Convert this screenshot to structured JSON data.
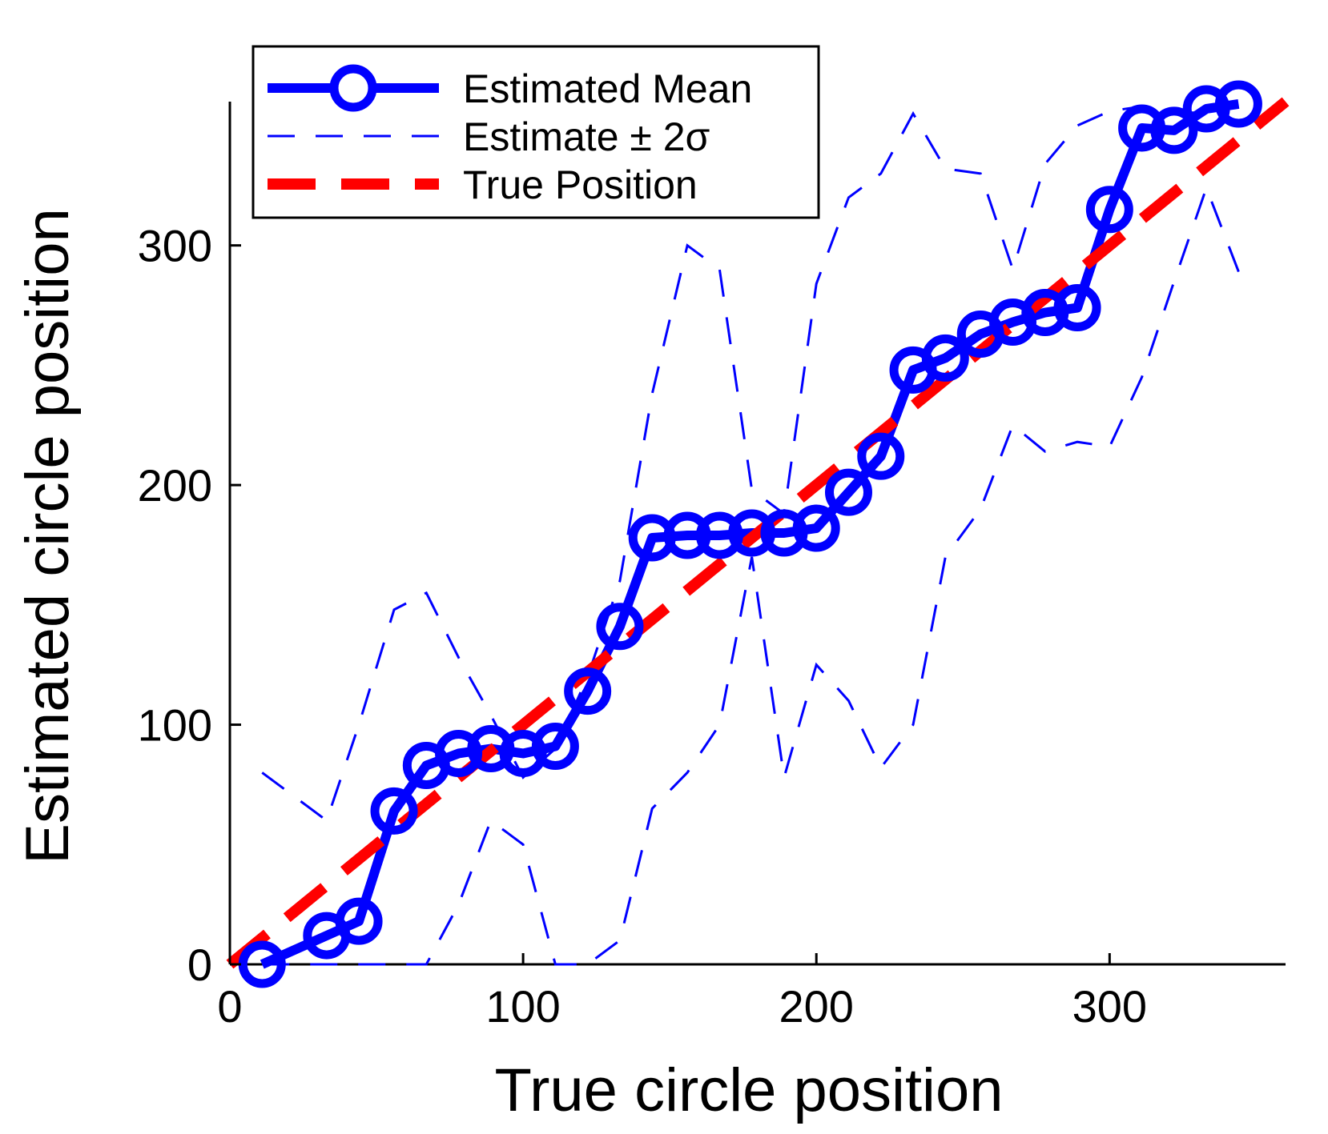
{
  "chart_data": {
    "type": "line",
    "title": "",
    "xlabel": "True circle position",
    "ylabel": "Estimated circle position",
    "xlim": [
      0,
      360
    ],
    "ylim": [
      0,
      360
    ],
    "xticks": [
      0,
      100,
      200,
      300
    ],
    "yticks": [
      0,
      100,
      200,
      300
    ],
    "x_tick_labels": [
      "0",
      "100",
      "200",
      "300"
    ],
    "y_tick_labels": [
      "0",
      "100",
      "200",
      "300"
    ],
    "grid": false,
    "legend_position": "top-left",
    "x": [
      11,
      33,
      44,
      56,
      67,
      78,
      89,
      100,
      111,
      122,
      133,
      144,
      156,
      167,
      178,
      189,
      200,
      211,
      222,
      233,
      244,
      256,
      267,
      278,
      289,
      300,
      311,
      322,
      333,
      344
    ],
    "series": [
      {
        "name": "Estimated Mean",
        "color": "#0000ff",
        "style": "solid-circles",
        "values": [
          0,
          12,
          18,
          64,
          83,
          88,
          90,
          88,
          91,
          114,
          141,
          178,
          179,
          179,
          180,
          180,
          182,
          197,
          212,
          248,
          253,
          263,
          268,
          272,
          274,
          315,
          349,
          348,
          357,
          359
        ]
      },
      {
        "name": "Estimate ± 2σ",
        "color": "#0000ff",
        "style": "dashed-thin",
        "upper": [
          80,
          60,
          100,
          148,
          155,
          128,
          104,
          78,
          90,
          120,
          160,
          238,
          300,
          290,
          198,
          188,
          284,
          320,
          330,
          355,
          332,
          330,
          290,
          334,
          350,
          356,
          358,
          356,
          355,
          358
        ],
        "lower": [
          0,
          0,
          0,
          0,
          0,
          25,
          60,
          50,
          0,
          0,
          10,
          65,
          80,
          100,
          170,
          78,
          125,
          110,
          82,
          100,
          170,
          190,
          225,
          214,
          218,
          216,
          245,
          285,
          324,
          289
        ]
      },
      {
        "name": "True Position",
        "color": "#ff0000",
        "style": "dashed-thick",
        "line": [
          [
            0,
            0
          ],
          [
            360,
            360
          ]
        ]
      }
    ]
  }
}
